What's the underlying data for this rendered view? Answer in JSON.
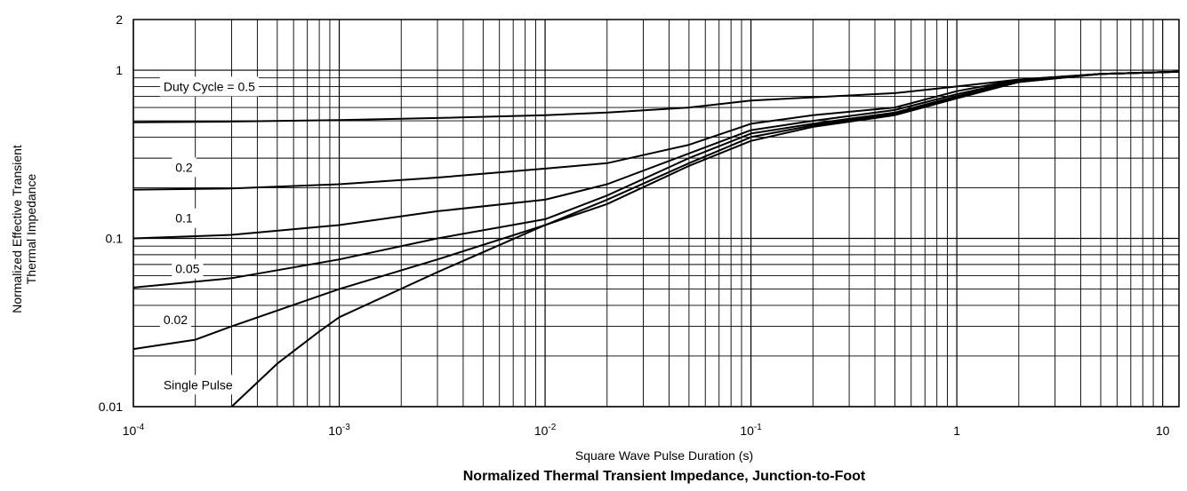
{
  "chart_data": {
    "type": "line",
    "title": "Normalized Thermal Transient Impedance, Junction-to-Foot",
    "xlabel": "Square Wave Pulse Duration (s)",
    "ylabel_line1": "Normalized Effective Transient",
    "ylabel_line2": "Thermal Impedance",
    "x_scale": "log",
    "y_scale": "log",
    "xlim": [
      0.0001,
      12
    ],
    "ylim": [
      0.01,
      2
    ],
    "grid": true,
    "x_ticks": [
      {
        "value": 0.0001,
        "base": "10",
        "exp": "-4"
      },
      {
        "value": 0.001,
        "base": "10",
        "exp": "-3"
      },
      {
        "value": 0.01,
        "base": "10",
        "exp": "-2"
      },
      {
        "value": 0.1,
        "base": "10",
        "exp": "-1"
      },
      {
        "value": 1,
        "base": "1",
        "exp": ""
      },
      {
        "value": 10,
        "base": "10",
        "exp": ""
      }
    ],
    "y_ticks": [
      {
        "value": 0.01,
        "label": "0.01"
      },
      {
        "value": 0.1,
        "label": "0.1"
      },
      {
        "value": 1,
        "label": "1"
      },
      {
        "value": 2,
        "label": "2"
      }
    ],
    "series": [
      {
        "name": "Duty Cycle = 0.5",
        "x": [
          0.0001,
          0.0003,
          0.001,
          0.003,
          0.01,
          0.02,
          0.05,
          0.1,
          0.2,
          0.5,
          1,
          2,
          5,
          12
        ],
        "y": [
          0.49,
          0.495,
          0.505,
          0.52,
          0.54,
          0.56,
          0.6,
          0.66,
          0.69,
          0.73,
          0.8,
          0.88,
          0.95,
          0.98
        ]
      },
      {
        "name": "0.2",
        "x": [
          0.0001,
          0.0003,
          0.001,
          0.003,
          0.01,
          0.02,
          0.05,
          0.1,
          0.2,
          0.5,
          1,
          2,
          5,
          12
        ],
        "y": [
          0.195,
          0.198,
          0.21,
          0.23,
          0.26,
          0.28,
          0.36,
          0.48,
          0.54,
          0.6,
          0.75,
          0.88,
          0.95,
          0.98
        ]
      },
      {
        "name": "0.1",
        "x": [
          0.0001,
          0.0003,
          0.001,
          0.003,
          0.01,
          0.02,
          0.05,
          0.1,
          0.2,
          0.5,
          1,
          2,
          5,
          12
        ],
        "y": [
          0.1,
          0.105,
          0.12,
          0.145,
          0.17,
          0.21,
          0.32,
          0.44,
          0.5,
          0.58,
          0.72,
          0.87,
          0.95,
          0.98
        ]
      },
      {
        "name": "0.05",
        "x": [
          0.0001,
          0.0003,
          0.001,
          0.003,
          0.01,
          0.02,
          0.05,
          0.1,
          0.2,
          0.5,
          1,
          2,
          5,
          12
        ],
        "y": [
          0.051,
          0.058,
          0.075,
          0.1,
          0.13,
          0.18,
          0.3,
          0.42,
          0.48,
          0.56,
          0.7,
          0.86,
          0.95,
          0.98
        ]
      },
      {
        "name": "0.02",
        "x": [
          0.0001,
          0.0002,
          0.0003,
          0.001,
          0.003,
          0.01,
          0.02,
          0.05,
          0.1,
          0.2,
          0.5,
          1,
          2,
          5,
          12
        ],
        "y": [
          0.022,
          0.025,
          0.03,
          0.05,
          0.075,
          0.12,
          0.17,
          0.28,
          0.4,
          0.47,
          0.55,
          0.69,
          0.85,
          0.95,
          0.98
        ]
      },
      {
        "name": "Single Pulse",
        "x": [
          0.0003,
          0.0005,
          0.0008,
          0.001,
          0.003,
          0.01,
          0.02,
          0.05,
          0.1,
          0.2,
          0.5,
          1,
          2,
          5,
          12
        ],
        "y": [
          0.01,
          0.018,
          0.028,
          0.034,
          0.063,
          0.12,
          0.16,
          0.27,
          0.38,
          0.46,
          0.54,
          0.68,
          0.85,
          0.95,
          0.98
        ]
      }
    ],
    "series_labels": [
      {
        "text": "Duty Cycle = 0.5",
        "x": 0.00014,
        "y": 0.8
      },
      {
        "text": "0.2",
        "x": 0.00016,
        "y": 0.265
      },
      {
        "text": "0.1",
        "x": 0.00016,
        "y": 0.132
      },
      {
        "text": "0.05",
        "x": 0.00016,
        "y": 0.066
      },
      {
        "text": "0.02",
        "x": 0.00014,
        "y": 0.033
      },
      {
        "text": "Single Pulse",
        "x": 0.00014,
        "y": 0.0135
      }
    ]
  }
}
